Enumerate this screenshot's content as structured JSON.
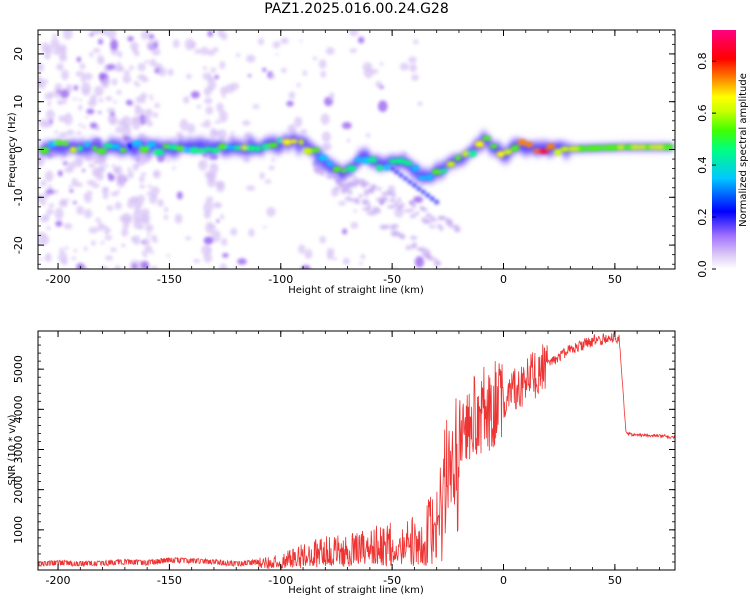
{
  "title": "PAZ1.2025.016.00.24.G28",
  "colors": {
    "snr_line": "#ee3333",
    "colormap": [
      "#ffffff",
      "#dcc8f5",
      "#a070ff",
      "#0000ff",
      "#00c8ff",
      "#00ff80",
      "#40ff00",
      "#c8ff00",
      "#ffff00",
      "#ff8000",
      "#ff0000",
      "#ff0080"
    ]
  },
  "chart_data": [
    {
      "type": "heatmap",
      "xlabel": "Height of straight line (km)",
      "ylabel": "Frequency (Hz)",
      "xlim": [
        -209,
        77
      ],
      "ylim": [
        -25,
        25
      ],
      "xticks": [
        -200,
        -150,
        -100,
        -50,
        0,
        50
      ],
      "yticks": [
        -20,
        -10,
        0,
        10,
        20
      ],
      "grid": false,
      "colorbar": {
        "label": "Normalized spectral amplitude",
        "range": [
          0.0,
          0.92
        ],
        "ticks": [
          0.0,
          0.2,
          0.4,
          0.6,
          0.8
        ]
      },
      "ridge_points": [
        {
          "x": -205,
          "y": 0.5,
          "v": 0.4
        },
        {
          "x": -195,
          "y": 0.8,
          "v": 0.55
        },
        {
          "x": -185,
          "y": 0.3,
          "v": 0.45
        },
        {
          "x": -175,
          "y": 0.6,
          "v": 0.5
        },
        {
          "x": -165,
          "y": 0.5,
          "v": 0.4
        },
        {
          "x": -155,
          "y": 0.2,
          "v": 0.5
        },
        {
          "x": -145,
          "y": 0.4,
          "v": 0.45
        },
        {
          "x": -135,
          "y": 0.5,
          "v": 0.5
        },
        {
          "x": -125,
          "y": 0.3,
          "v": 0.45
        },
        {
          "x": -115,
          "y": 0.5,
          "v": 0.5
        },
        {
          "x": -105,
          "y": 0.8,
          "v": 0.45
        },
        {
          "x": -95,
          "y": 1.8,
          "v": 0.6
        },
        {
          "x": -88,
          "y": 0.5,
          "v": 0.7
        },
        {
          "x": -80,
          "y": -2.5,
          "v": 0.5
        },
        {
          "x": -72,
          "y": -5.0,
          "v": 0.5
        },
        {
          "x": -62,
          "y": -1.5,
          "v": 0.45
        },
        {
          "x": -55,
          "y": -3.5,
          "v": 0.5
        },
        {
          "x": -45,
          "y": -2.0,
          "v": 0.45
        },
        {
          "x": -35,
          "y": -6.0,
          "v": 0.45
        },
        {
          "x": -25,
          "y": -3.5,
          "v": 0.5
        },
        {
          "x": -15,
          "y": -0.5,
          "v": 0.55
        },
        {
          "x": -8,
          "y": 2.0,
          "v": 0.6
        },
        {
          "x": 0,
          "y": -1.0,
          "v": 0.6
        },
        {
          "x": 8,
          "y": 0.8,
          "v": 0.75
        },
        {
          "x": 20,
          "y": 0.0,
          "v": 0.85
        },
        {
          "x": 35,
          "y": 0.2,
          "v": 0.55
        },
        {
          "x": 55,
          "y": 0.5,
          "v": 0.6
        },
        {
          "x": 75,
          "y": 0.5,
          "v": 0.6
        }
      ]
    },
    {
      "type": "line",
      "xlabel": "Height of straight line (km)",
      "ylabel": "SNR (10 * v/v)",
      "xlim": [
        -209,
        77
      ],
      "ylim": [
        0,
        5950
      ],
      "xticks": [
        -200,
        -150,
        -100,
        -50,
        0,
        50
      ],
      "yticks": [
        1000,
        2000,
        3000,
        4000,
        5000
      ],
      "grid": false,
      "series": [
        {
          "name": "",
          "x": [
            -209,
            -200,
            -190,
            -180,
            -170,
            -160,
            -150,
            -140,
            -130,
            -120,
            -110,
            -100,
            -90,
            -80,
            -70,
            -60,
            -50,
            -40,
            -35,
            -30,
            -25,
            -22,
            -20,
            -15,
            -10,
            -5,
            0,
            10,
            20,
            30,
            40,
            50,
            52,
            55,
            60,
            70,
            77
          ],
          "y": [
            150,
            180,
            160,
            170,
            200,
            180,
            250,
            230,
            200,
            150,
            200,
            250,
            450,
            550,
            650,
            700,
            800,
            900,
            1000,
            1600,
            2800,
            3000,
            3400,
            3800,
            4000,
            4100,
            4300,
            4700,
            5100,
            5500,
            5700,
            5800,
            5750,
            3400,
            3350,
            3350,
            3300
          ]
        }
      ]
    }
  ]
}
